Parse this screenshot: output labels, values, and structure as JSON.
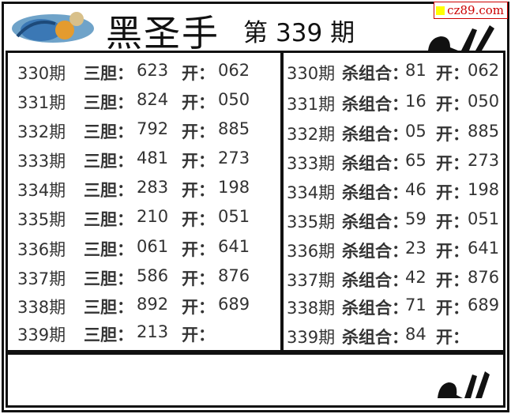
{
  "header": {
    "title": "黑圣手",
    "issue_prefix": "第",
    "issue_number": "339",
    "issue_suffix": "期",
    "watermark": "cz89.com"
  },
  "left_panel": {
    "label": "三胆：",
    "open_label": "开：",
    "rows": [
      {
        "period": "330期",
        "value": "623",
        "open": "062"
      },
      {
        "period": "331期",
        "value": "824",
        "open": "050"
      },
      {
        "period": "332期",
        "value": "792",
        "open": "885"
      },
      {
        "period": "333期",
        "value": "481",
        "open": "273"
      },
      {
        "period": "334期",
        "value": "283",
        "open": "198"
      },
      {
        "period": "335期",
        "value": "210",
        "open": "051"
      },
      {
        "period": "336期",
        "value": "061",
        "open": "641"
      },
      {
        "period": "337期",
        "value": "586",
        "open": "876"
      },
      {
        "period": "338期",
        "value": "892",
        "open": "689"
      },
      {
        "period": "339期",
        "value": "213",
        "open": ""
      }
    ]
  },
  "right_panel": {
    "label": "杀组合：",
    "open_label": "开：",
    "rows": [
      {
        "period": "330期",
        "value": "81",
        "open": "062"
      },
      {
        "period": "331期",
        "value": "16",
        "open": "050"
      },
      {
        "period": "332期",
        "value": "05",
        "open": "885"
      },
      {
        "period": "333期",
        "value": "65",
        "open": "273"
      },
      {
        "period": "334期",
        "value": "46",
        "open": "198"
      },
      {
        "period": "335期",
        "value": "59",
        "open": "051"
      },
      {
        "period": "336期",
        "value": "23",
        "open": "641"
      },
      {
        "period": "337期",
        "value": "42",
        "open": "876"
      },
      {
        "period": "338期",
        "value": "71",
        "open": "689"
      },
      {
        "period": "339期",
        "value": "84",
        "open": ""
      }
    ]
  },
  "icons": {
    "logo": "3d-lottery-logo",
    "hand": "ok-hand-icon"
  }
}
